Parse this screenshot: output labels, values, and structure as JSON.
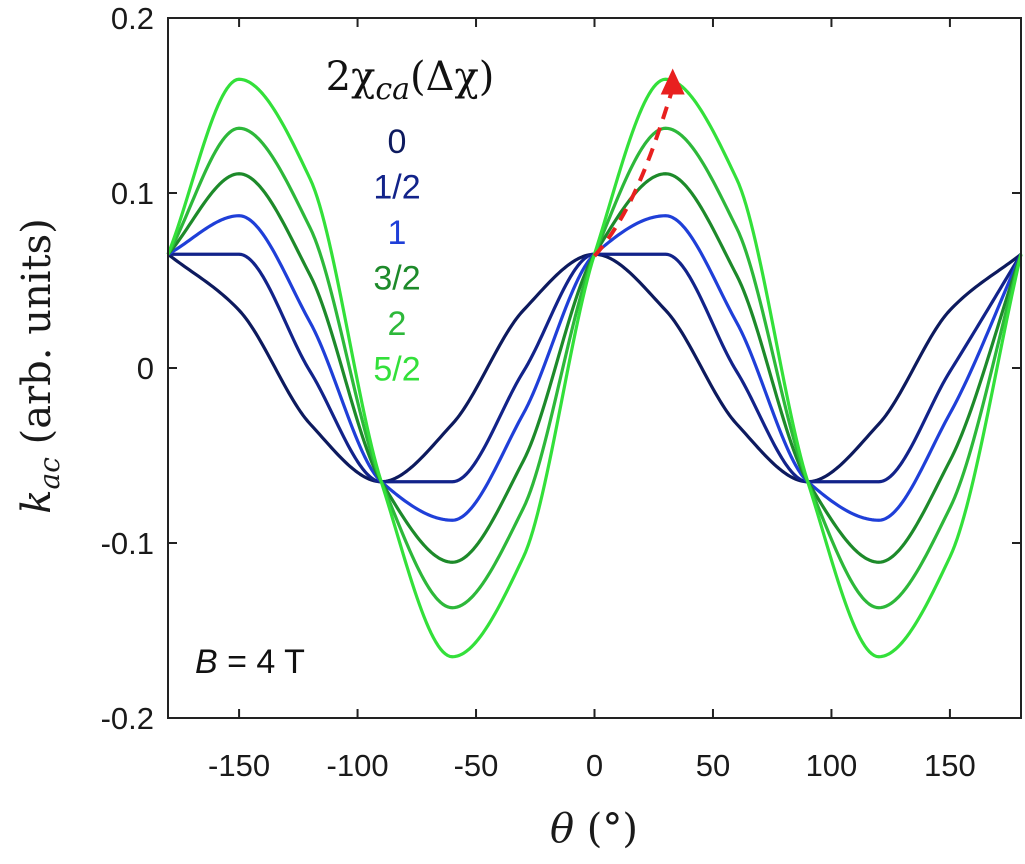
{
  "chart_data": {
    "type": "line",
    "title": "",
    "xlabel": "θ (°)",
    "ylabel": "k_ac (arb. units)",
    "xlabel_parts": {
      "sym": "θ",
      "rest": " (°)"
    },
    "ylabel_parts": {
      "sym": "k",
      "sub": "ac",
      "rest": " (arb. units)"
    },
    "xlim": [
      -180,
      180
    ],
    "ylim": [
      -0.2,
      0.2
    ],
    "xticks": [
      -150,
      -100,
      -50,
      0,
      50,
      100,
      150
    ],
    "xtick_labels": [
      "-150",
      "-100",
      "-50",
      "0",
      "50",
      "100",
      "150"
    ],
    "yticks": [
      -0.2,
      -0.1,
      0,
      0.1,
      0.2
    ],
    "ytick_labels": [
      "-0.2",
      "-0.1",
      "0",
      "0.1",
      "0.2"
    ],
    "grid": false,
    "legend": {
      "title": "2χca(Δχ)",
      "title_parts": {
        "pre": "2χ",
        "sub": "ca",
        "post": "(Δχ)"
      },
      "position": "top-left"
    },
    "annotation": "B = 4 T",
    "annotation_parts": {
      "sym": "B",
      "rest": " = 4 T"
    },
    "series": [
      {
        "name": "0",
        "color": "#0d1a5e",
        "x": [
          -180,
          -150,
          -120,
          -90,
          -60,
          -30,
          0,
          30,
          60,
          90,
          120,
          150,
          180
        ],
        "y": [
          0.065,
          0.033,
          -0.032,
          -0.065,
          -0.032,
          0.033,
          0.065,
          0.033,
          -0.032,
          -0.065,
          -0.032,
          0.033,
          0.065
        ]
      },
      {
        "name": "1/2",
        "color": "#12238a",
        "x": [
          -180,
          -150,
          -120,
          -90,
          -60,
          -30,
          0,
          30,
          60,
          90,
          120,
          150,
          180
        ],
        "y": [
          0.065,
          0.065,
          -0.002,
          -0.065,
          -0.065,
          -0.002,
          0.065,
          0.065,
          -0.002,
          -0.065,
          -0.065,
          -0.002,
          0.065
        ]
      },
      {
        "name": "1",
        "color": "#1f3fd8",
        "x": [
          -180,
          -150,
          -120,
          -90,
          -60,
          -30,
          0,
          30,
          60,
          90,
          120,
          150,
          180
        ],
        "y": [
          0.065,
          0.087,
          0.026,
          -0.065,
          -0.087,
          -0.026,
          0.065,
          0.087,
          0.026,
          -0.065,
          -0.087,
          -0.026,
          0.065
        ]
      },
      {
        "name": "3/2",
        "color": "#1d8a2a",
        "x": [
          -180,
          -150,
          -120,
          -90,
          -60,
          -30,
          0,
          30,
          60,
          90,
          120,
          150,
          180
        ],
        "y": [
          0.065,
          0.111,
          0.053,
          -0.065,
          -0.111,
          -0.053,
          0.065,
          0.111,
          0.053,
          -0.065,
          -0.111,
          -0.053,
          0.065
        ]
      },
      {
        "name": "2",
        "color": "#2db83a",
        "x": [
          -180,
          -150,
          -120,
          -90,
          -60,
          -30,
          0,
          30,
          60,
          90,
          120,
          150,
          180
        ],
        "y": [
          0.065,
          0.137,
          0.08,
          -0.065,
          -0.137,
          -0.08,
          0.065,
          0.137,
          0.08,
          -0.065,
          -0.137,
          -0.08,
          0.065
        ]
      },
      {
        "name": "5/2",
        "color": "#33e03a",
        "x": [
          -180,
          -150,
          -120,
          -90,
          -60,
          -30,
          0,
          30,
          60,
          90,
          120,
          150,
          180
        ],
        "y": [
          0.065,
          0.165,
          0.108,
          -0.065,
          -0.165,
          -0.108,
          0.065,
          0.165,
          0.108,
          -0.065,
          -0.165,
          -0.108,
          0.065
        ]
      }
    ],
    "arrow": {
      "color": "#e8201f",
      "x": [
        0,
        17,
        26,
        33
      ],
      "y": [
        0.064,
        0.09,
        0.13,
        0.17
      ]
    }
  }
}
